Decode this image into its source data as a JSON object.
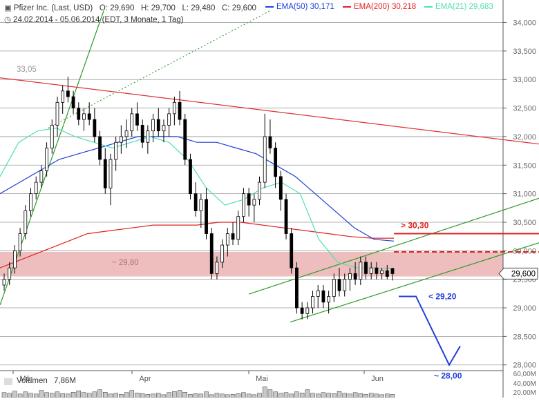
{
  "header": {
    "instrument": "Pfizer Inc. (Last, USD)",
    "open": "O: 29,690",
    "high": "H: 29,700",
    "low": "L: 29,480",
    "close": "C: 29,600",
    "period": "24.02.2014 - 05.06.2014 (EDT, 3 Monate, 1 Tag)"
  },
  "legend": [
    {
      "label": "EMA(50)",
      "value": "30,171",
      "color": "#1f3fd6"
    },
    {
      "label": "EMA(200)",
      "value": "30,218",
      "color": "#e02020"
    },
    {
      "label": "EMA(21)",
      "value": "29,683",
      "color": "#4fe0b0"
    }
  ],
  "annotations": {
    "peak_label": "33,05",
    "zone_label": "~ 29,80",
    "resist_label": "> 30,30",
    "support_label": "< 29,20",
    "target_label": "~ 28,00",
    "last_price": "29,600"
  },
  "volume": {
    "label": "Volumen",
    "value": "7,86M",
    "ticks": [
      "60,00M",
      "40,00M",
      "20,00M"
    ]
  },
  "colors": {
    "candle_up": "#ffffff",
    "candle_down": "#000000",
    "zone": "#e8a8a8",
    "trend_green": "#2a9a2a",
    "trend_red": "#e03030",
    "resist": "#e02020",
    "projection": "#1f3fd6",
    "grid": "#999999",
    "volume_bar": "#c8c8c8"
  },
  "chart_data": {
    "type": "candlestick",
    "title": "Pfizer Inc. (Last, USD)",
    "y_axis": {
      "min": 27.9,
      "max": 34.2,
      "ticks": [
        28.0,
        28.5,
        29.0,
        29.5,
        30.0,
        30.5,
        31.0,
        31.5,
        32.0,
        32.5,
        33.0,
        33.5,
        34.0
      ],
      "tick_labels": [
        "28,000",
        "28,500",
        "29,000",
        "29,500",
        "30,000",
        "30,500",
        "31,000",
        "31,500",
        "32,000",
        "32,500",
        "33,000",
        "33,500",
        "34,000"
      ]
    },
    "x_axis": {
      "month_labels": [
        "Mär",
        "Apr",
        "Mai",
        "Jun"
      ]
    },
    "candles": [
      [
        29.4,
        29.6,
        29.3,
        29.5
      ],
      [
        29.5,
        29.8,
        29.4,
        29.7
      ],
      [
        29.7,
        30.1,
        29.6,
        30.0
      ],
      [
        30.0,
        30.4,
        29.9,
        30.3
      ],
      [
        30.3,
        30.8,
        30.2,
        30.7
      ],
      [
        30.7,
        31.1,
        30.6,
        31.0
      ],
      [
        31.0,
        31.3,
        30.9,
        31.2
      ],
      [
        31.2,
        31.5,
        31.1,
        31.4
      ],
      [
        31.4,
        31.9,
        31.3,
        31.8
      ],
      [
        31.8,
        32.3,
        31.7,
        32.2
      ],
      [
        32.2,
        32.7,
        32.0,
        32.6
      ],
      [
        32.6,
        32.9,
        32.4,
        32.8
      ],
      [
        32.8,
        33.05,
        32.6,
        32.7
      ],
      [
        32.7,
        32.8,
        32.4,
        32.5
      ],
      [
        32.5,
        32.6,
        32.2,
        32.3
      ],
      [
        32.3,
        32.5,
        32.1,
        32.4
      ],
      [
        32.4,
        32.6,
        32.2,
        32.3
      ],
      [
        32.3,
        32.5,
        31.9,
        32.0
      ],
      [
        32.0,
        32.1,
        31.5,
        31.6
      ],
      [
        31.6,
        31.8,
        31.0,
        31.1
      ],
      [
        31.1,
        31.7,
        30.8,
        31.6
      ],
      [
        31.6,
        32.0,
        31.4,
        31.9
      ],
      [
        31.9,
        32.2,
        31.7,
        32.0
      ],
      [
        32.0,
        32.3,
        31.8,
        32.1
      ],
      [
        32.1,
        32.5,
        32.0,
        32.4
      ],
      [
        32.4,
        32.6,
        32.1,
        32.2
      ],
      [
        32.2,
        32.3,
        31.8,
        31.9
      ],
      [
        31.9,
        32.2,
        31.7,
        32.1
      ],
      [
        32.1,
        32.4,
        31.9,
        32.3
      ],
      [
        32.3,
        32.5,
        32.0,
        32.1
      ],
      [
        32.1,
        32.3,
        31.9,
        32.2
      ],
      [
        32.2,
        32.5,
        32.0,
        32.4
      ],
      [
        32.4,
        32.7,
        32.2,
        32.6
      ],
      [
        32.6,
        32.8,
        32.2,
        32.3
      ],
      [
        32.3,
        32.4,
        31.5,
        31.6
      ],
      [
        31.6,
        31.7,
        30.9,
        31.0
      ],
      [
        31.0,
        31.2,
        30.6,
        30.7
      ],
      [
        30.7,
        31.0,
        30.4,
        30.9
      ],
      [
        30.9,
        31.1,
        30.2,
        30.3
      ],
      [
        30.3,
        30.4,
        29.5,
        29.6
      ],
      [
        29.6,
        29.9,
        29.5,
        29.8
      ],
      [
        29.8,
        30.2,
        29.7,
        30.1
      ],
      [
        30.1,
        30.4,
        29.9,
        30.3
      ],
      [
        30.3,
        30.5,
        30.1,
        30.2
      ],
      [
        30.2,
        30.7,
        30.1,
        30.6
      ],
      [
        30.6,
        31.1,
        30.5,
        31.0
      ],
      [
        31.0,
        31.1,
        30.6,
        30.8
      ],
      [
        30.8,
        31.0,
        30.5,
        30.9
      ],
      [
        30.9,
        31.3,
        30.8,
        31.2
      ],
      [
        31.2,
        32.4,
        31.1,
        32.0
      ],
      [
        32.0,
        32.3,
        31.7,
        31.8
      ],
      [
        31.8,
        31.9,
        31.1,
        31.3
      ],
      [
        31.3,
        31.4,
        30.7,
        30.9
      ],
      [
        30.9,
        31.0,
        30.2,
        30.3
      ],
      [
        30.3,
        30.4,
        29.6,
        29.7
      ],
      [
        29.7,
        29.8,
        28.9,
        29.0
      ],
      [
        29.0,
        29.1,
        28.8,
        28.9
      ],
      [
        28.9,
        29.1,
        28.8,
        29.0
      ],
      [
        29.0,
        29.3,
        28.9,
        29.2
      ],
      [
        29.2,
        29.4,
        29.0,
        29.3
      ],
      [
        29.3,
        29.4,
        29.0,
        29.1
      ],
      [
        29.1,
        29.3,
        28.9,
        29.2
      ],
      [
        29.2,
        29.6,
        29.1,
        29.5
      ],
      [
        29.5,
        29.7,
        29.2,
        29.3
      ],
      [
        29.3,
        29.6,
        29.2,
        29.5
      ],
      [
        29.5,
        29.7,
        29.3,
        29.6
      ],
      [
        29.6,
        29.8,
        29.4,
        29.5
      ],
      [
        29.5,
        29.9,
        29.4,
        29.8
      ],
      [
        29.8,
        29.9,
        29.5,
        29.6
      ],
      [
        29.6,
        29.8,
        29.5,
        29.7
      ],
      [
        29.7,
        29.8,
        29.5,
        29.6
      ],
      [
        29.6,
        29.7,
        29.5,
        29.65
      ],
      [
        29.65,
        29.75,
        29.5,
        29.55
      ],
      [
        29.69,
        29.7,
        29.48,
        29.6
      ]
    ],
    "series": [
      {
        "name": "EMA(50)",
        "values": [
          31.0,
          31.2,
          31.4,
          31.6,
          31.7,
          31.8,
          31.9,
          32.0,
          32.0,
          32.0,
          31.9,
          31.9,
          31.8,
          31.7,
          31.5,
          31.3,
          31.0,
          30.7,
          30.4,
          30.2,
          30.17
        ]
      },
      {
        "name": "EMA(200)",
        "values": [
          29.7,
          29.85,
          30.0,
          30.15,
          30.3,
          30.35,
          30.4,
          30.45,
          30.45,
          30.45,
          30.5,
          30.5,
          30.45,
          30.4,
          30.35,
          30.3,
          30.25,
          30.22,
          30.22
        ]
      },
      {
        "name": "EMA(21)",
        "values": [
          31.3,
          31.9,
          32.1,
          32.15,
          32.0,
          31.9,
          31.8,
          31.9,
          32.0,
          31.9,
          31.6,
          31.1,
          30.8,
          30.9,
          31.1,
          31.2,
          31.0,
          30.2,
          29.8,
          29.7,
          29.7,
          29.68
        ]
      }
    ],
    "annotations": {
      "resistance_zone": [
        29.55,
        29.98
      ],
      "resistance_target": 30.3,
      "support": 29.2,
      "target": 28.0
    },
    "volume_ticks": [
      60,
      40,
      20
    ],
    "volume_unit": "M"
  }
}
